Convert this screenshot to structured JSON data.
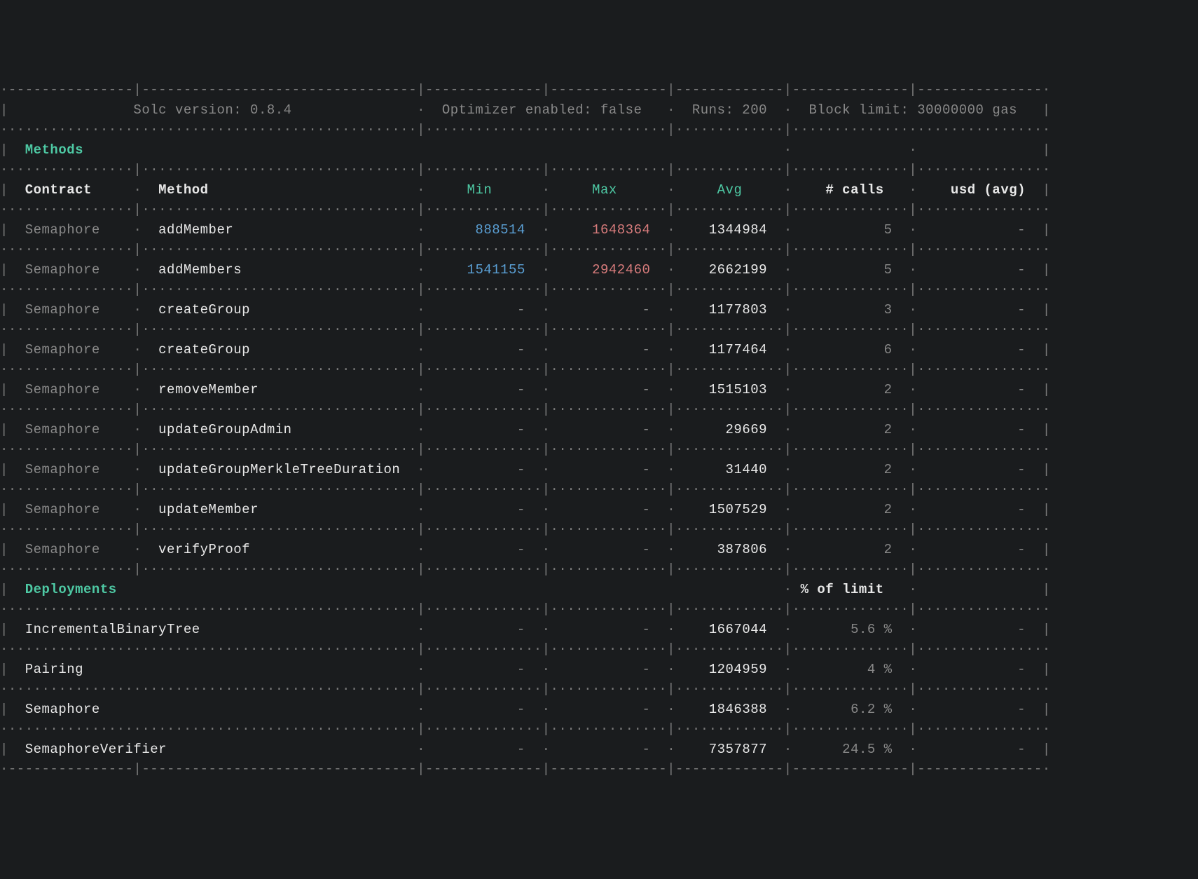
{
  "header": {
    "solc_label": "Solc version: 0.8.4",
    "optimizer_label": "Optimizer enabled: false",
    "runs_label": "Runs: 200",
    "block_limit_label": "Block limit: 30000000 gas"
  },
  "sections": {
    "methods_label": "Methods",
    "deployments_label": "Deployments"
  },
  "columns": {
    "contract": "Contract",
    "method": "Method",
    "min": "Min",
    "max": "Max",
    "avg": "Avg",
    "calls": "# calls",
    "usd": "usd (avg)",
    "pct_limit": "% of limit"
  },
  "methods": [
    {
      "contract": "Semaphore",
      "method": "addMember",
      "min": "888514",
      "max": "1648364",
      "avg": "1344984",
      "calls": "5",
      "usd": "-"
    },
    {
      "contract": "Semaphore",
      "method": "addMembers",
      "min": "1541155",
      "max": "2942460",
      "avg": "2662199",
      "calls": "5",
      "usd": "-"
    },
    {
      "contract": "Semaphore",
      "method": "createGroup",
      "min": "-",
      "max": "-",
      "avg": "1177803",
      "calls": "3",
      "usd": "-"
    },
    {
      "contract": "Semaphore",
      "method": "createGroup",
      "min": "-",
      "max": "-",
      "avg": "1177464",
      "calls": "6",
      "usd": "-"
    },
    {
      "contract": "Semaphore",
      "method": "removeMember",
      "min": "-",
      "max": "-",
      "avg": "1515103",
      "calls": "2",
      "usd": "-"
    },
    {
      "contract": "Semaphore",
      "method": "updateGroupAdmin",
      "min": "-",
      "max": "-",
      "avg": "29669",
      "calls": "2",
      "usd": "-"
    },
    {
      "contract": "Semaphore",
      "method": "updateGroupMerkleTreeDuration",
      "min": "-",
      "max": "-",
      "avg": "31440",
      "calls": "2",
      "usd": "-"
    },
    {
      "contract": "Semaphore",
      "method": "updateMember",
      "min": "-",
      "max": "-",
      "avg": "1507529",
      "calls": "2",
      "usd": "-"
    },
    {
      "contract": "Semaphore",
      "method": "verifyProof",
      "min": "-",
      "max": "-",
      "avg": "387806",
      "calls": "2",
      "usd": "-"
    }
  ],
  "deployments": [
    {
      "name": "IncrementalBinaryTree",
      "min": "-",
      "max": "-",
      "avg": "1667044",
      "pct": "5.6 %",
      "usd": "-"
    },
    {
      "name": "Pairing",
      "min": "-",
      "max": "-",
      "avg": "1204959",
      "pct": "4 %",
      "usd": "-"
    },
    {
      "name": "Semaphore",
      "min": "-",
      "max": "-",
      "avg": "1846388",
      "pct": "6.2 %",
      "usd": "-"
    },
    {
      "name": "SemaphoreVerifier",
      "min": "-",
      "max": "-",
      "avg": "7357877",
      "pct": "24.5 %",
      "usd": "-"
    }
  ],
  "colors": {
    "bg": "#1a1c1e",
    "border": "#7a7a7a",
    "dim": "#888888",
    "white": "#e8e8e8",
    "green": "#4ec9a4",
    "blue": "#5a9fd4",
    "red": "#d87c7c"
  },
  "colWidths": {
    "col1": 15,
    "col2": 33,
    "col3": 14,
    "col4": 14,
    "col5": 13,
    "col6": 14,
    "col7": 15
  }
}
